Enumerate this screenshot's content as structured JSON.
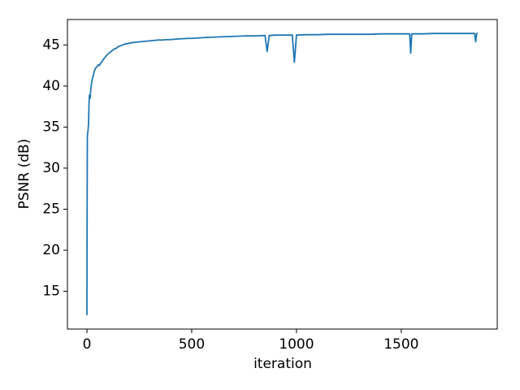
{
  "chart_data": {
    "type": "line",
    "x_label": "iteration",
    "y_label": "PSNR (dB)",
    "series": [
      {
        "color": "#1f77b4",
        "x": [
          0,
          1,
          2,
          3,
          5,
          8,
          10,
          12,
          15,
          20,
          25,
          30,
          35,
          40,
          45,
          50,
          55,
          60,
          65,
          70,
          75,
          80,
          90,
          100,
          110,
          120,
          130,
          140,
          150,
          160,
          170,
          180,
          200,
          220,
          240,
          260,
          280,
          300,
          320,
          340,
          360,
          380,
          400,
          420,
          450,
          480,
          500,
          530,
          560,
          600,
          650,
          700,
          750,
          800,
          850,
          860,
          870,
          900,
          950,
          980,
          990,
          1000,
          1050,
          1100,
          1150,
          1200,
          1250,
          1300,
          1350,
          1400,
          1450,
          1500,
          1540,
          1545,
          1550,
          1600,
          1650,
          1700,
          1750,
          1800,
          1850,
          1855,
          1860,
          1865
        ],
        "values": [
          12.1,
          25,
          33.8,
          34.2,
          34.5,
          35.5,
          38,
          38.9,
          38.5,
          40,
          40.8,
          41.2,
          41.8,
          42.1,
          42.3,
          42.4,
          42.6,
          42.5,
          42.8,
          42.9,
          43.1,
          43.3,
          43.6,
          43.9,
          44.1,
          44.3,
          44.5,
          44.6,
          44.8,
          44.9,
          45.0,
          45.1,
          45.2,
          45.3,
          45.35,
          45.4,
          45.45,
          45.5,
          45.55,
          45.6,
          45.6,
          45.65,
          45.65,
          45.7,
          45.75,
          45.8,
          45.8,
          45.85,
          45.9,
          45.95,
          46.0,
          46.05,
          46.1,
          46.1,
          46.15,
          44.2,
          46.15,
          46.2,
          46.2,
          46.2,
          42.9,
          46.2,
          46.25,
          46.25,
          46.3,
          46.3,
          46.3,
          46.3,
          46.3,
          46.35,
          46.35,
          46.35,
          46.35,
          44.0,
          46.35,
          46.35,
          46.4,
          46.4,
          46.4,
          46.4,
          46.4,
          45.4,
          46.4,
          46.4
        ]
      }
    ],
    "xlim": [
      -93,
      1958
    ],
    "xticks": [
      0,
      500,
      1000,
      1500
    ],
    "ylim": [
      10.4,
      48.1
    ],
    "yticks": [
      15,
      20,
      25,
      30,
      35,
      40,
      45
    ]
  }
}
